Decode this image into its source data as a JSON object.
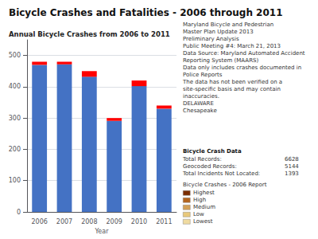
{
  "chart_data": {
    "type": "bar",
    "title": "Bicycle Crashes and Fatalities - 2006 through 2011",
    "subtitle": "Annual Bicycle Crashes from 2006 to 2011",
    "xlabel": "Year",
    "categories": [
      "2006",
      "2007",
      "2008",
      "2009",
      "2010",
      "2011"
    ],
    "series": [
      {
        "color": "#4472C4",
        "values": [
          470,
          472,
          432,
          291,
          402,
          330
        ]
      },
      {
        "color": "#FF0000",
        "values": [
          10,
          8,
          18,
          9,
          18,
          10
        ]
      }
    ],
    "stacked": true,
    "ylim": [
      0,
      550
    ],
    "yticks": [
      0,
      100,
      200,
      300,
      400,
      500
    ],
    "grid": true,
    "annotations": [
      "Maryland Bicycle and Pedestrian",
      "Master Plan Update 2013",
      "Preliminary Analysis",
      "Public Meeting #4: March 21, 2013",
      "Data Source: Maryland Automated Accident Reporting System (MAARS)",
      "Data only includes crashes documented in Police Reports",
      "The data has not been verified on a site-specific basis and may contain inaccuracies.",
      "DELAWARE",
      "Chesapeake"
    ],
    "info_box": {
      "title": "Bicycle Crash Data",
      "rows": [
        {
          "label": "Total Records:",
          "value": 6628
        },
        {
          "label": "Geocoded Records:",
          "value": 5144
        },
        {
          "label": "Total Incidents Not Located:",
          "value": 1393
        }
      ]
    },
    "map_legend": {
      "title": "Bicycle Crashes - 2006 Report",
      "labels": [
        "Highest",
        "High",
        "Medium",
        "Low",
        "Lowest"
      ],
      "colors": [
        "#7b2d00",
        "#b5651d",
        "#d4a056",
        "#e8c87a",
        "#f0dba0"
      ]
    }
  }
}
